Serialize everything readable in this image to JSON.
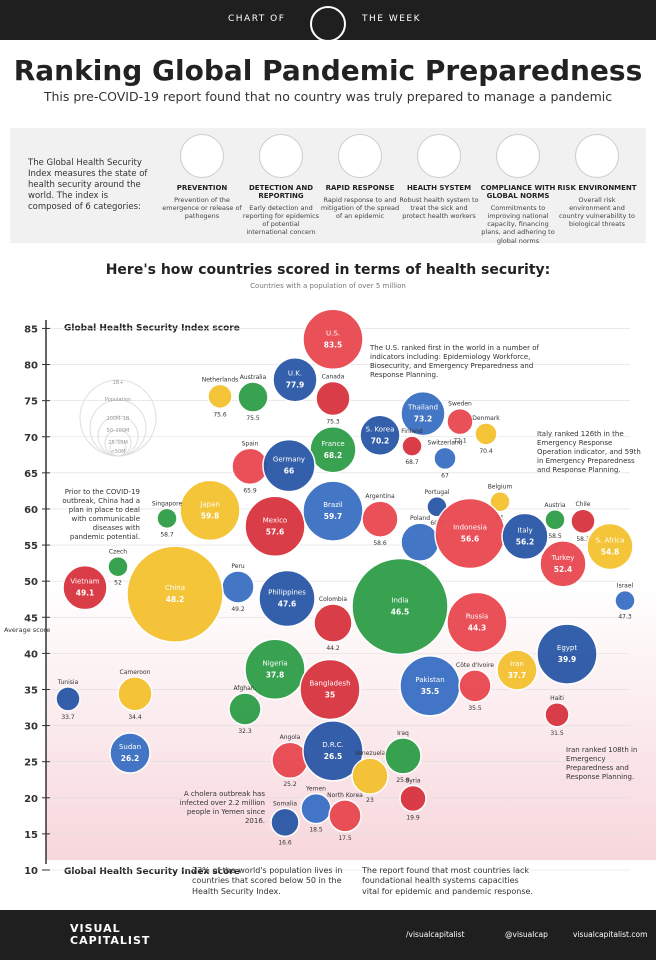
{
  "header": {
    "left": "CHART OF",
    "right": "THE WEEK",
    "title": "Ranking Global Pandemic Preparedness",
    "subtitle": "This pre-COVID-19 report found that no country was truly prepared to manage a pandemic"
  },
  "intro": "The Global Health Security Index measures the state of health security around the world. The index is composed of 6 categories:",
  "categories": [
    {
      "title": "PREVENTION",
      "desc": "Prevention of the emergence or release of pathogens"
    },
    {
      "title": "DETECTION AND REPORTING",
      "desc": "Early detection and reporting for epidemics of potential international concern"
    },
    {
      "title": "RAPID RESPONSE",
      "desc": "Rapid response to and mitigation of the spread of an epidemic"
    },
    {
      "title": "HEALTH SYSTEM",
      "desc": "Robust health system to treat the sick and protect health workers"
    },
    {
      "title": "COMPLIANCE WITH GLOBAL NORMS",
      "desc": "Commitments to improving national capacity, financing plans, and adhering to global norms"
    },
    {
      "title": "RISK ENVIRONMENT",
      "desc": "Overall risk environment and country vulnerability to biological threats"
    }
  ],
  "chart_data": {
    "type": "bubble",
    "title": "Here's how countries scored in terms of health security:",
    "subtitle": "Countries with a population of over 5 million",
    "y_label_top": "Global Health Security Index score",
    "y_label_bottom": "Global Health Security Index score",
    "average_label": "Average score",
    "ylim": [
      10,
      87
    ],
    "yticks": [
      10,
      15,
      20,
      25,
      30,
      35,
      40,
      45,
      50,
      55,
      60,
      65,
      70,
      75,
      80,
      85
    ],
    "population_legend": [
      "1B+",
      "Population",
      "100M–1B",
      "50–100M",
      "25–50M",
      "<50M"
    ],
    "points": [
      {
        "name": "U.S.",
        "value": 83.5
      },
      {
        "name": "U.K.",
        "value": 77.9
      },
      {
        "name": "Netherlands",
        "value": 75.6
      },
      {
        "name": "Australia",
        "value": 75.5
      },
      {
        "name": "Canada",
        "value": 75.3
      },
      {
        "name": "Thailand",
        "value": 73.2
      },
      {
        "name": "Sweden",
        "value": 72.1
      },
      {
        "name": "S. Korea",
        "value": 70.2
      },
      {
        "name": "Denmark",
        "value": 70.4
      },
      {
        "name": "France",
        "value": 68.2
      },
      {
        "name": "Finland",
        "value": 68.7
      },
      {
        "name": "Switzerland",
        "value": 67.0
      },
      {
        "name": "Spain",
        "value": 65.9
      },
      {
        "name": "Germany",
        "value": 66.0
      },
      {
        "name": "Japan",
        "value": 59.8
      },
      {
        "name": "Singapore",
        "value": 58.7
      },
      {
        "name": "Mexico",
        "value": 57.6
      },
      {
        "name": "Brazil",
        "value": 59.7
      },
      {
        "name": "Argentina",
        "value": 58.6
      },
      {
        "name": "Portugal",
        "value": 60.3
      },
      {
        "name": "Belgium",
        "value": 61.0
      },
      {
        "name": "Austria",
        "value": 58.5
      },
      {
        "name": "Chile",
        "value": 58.3
      },
      {
        "name": "Poland",
        "value": 55.4
      },
      {
        "name": "Indonesia",
        "value": 56.6
      },
      {
        "name": "Italy",
        "value": 56.2
      },
      {
        "name": "S. Africa",
        "value": 54.8
      },
      {
        "name": "Czech",
        "value": 52.0
      },
      {
        "name": "Vietnam",
        "value": 49.1
      },
      {
        "name": "Peru",
        "value": 49.2
      },
      {
        "name": "Turkey",
        "value": 52.4
      },
      {
        "name": "Philippines",
        "value": 47.6
      },
      {
        "name": "China",
        "value": 48.2
      },
      {
        "name": "India",
        "value": 46.5
      },
      {
        "name": "Colombia",
        "value": 44.2
      },
      {
        "name": "Israel",
        "value": 47.3
      },
      {
        "name": "Russia",
        "value": 44.3
      },
      {
        "name": "Egypt",
        "value": 39.9
      },
      {
        "name": "Iran",
        "value": 37.7
      },
      {
        "name": "Nigeria",
        "value": 37.8
      },
      {
        "name": "Bangladesh",
        "value": 35.0
      },
      {
        "name": "Pakistan",
        "value": 35.5
      },
      {
        "name": "Côte d'Ivoire",
        "value": 35.5
      },
      {
        "name": "Tunisia",
        "value": 33.7
      },
      {
        "name": "Cameroon",
        "value": 34.4
      },
      {
        "name": "Afghan.",
        "value": 32.3
      },
      {
        "name": "Haiti",
        "value": 31.5
      },
      {
        "name": "Sudan",
        "value": 26.2
      },
      {
        "name": "Angola",
        "value": 25.2
      },
      {
        "name": "D.R.C.",
        "value": 26.5
      },
      {
        "name": "Venezuela",
        "value": 23.0
      },
      {
        "name": "Iraq",
        "value": 25.8
      },
      {
        "name": "Syria",
        "value": 19.9
      },
      {
        "name": "Yemen",
        "value": 18.5
      },
      {
        "name": "North Korea",
        "value": 17.5
      },
      {
        "name": "Somalia",
        "value": 16.6
      }
    ],
    "annotations": [
      "The U.S. ranked first in the world in a number of indicators including: Epidemiology Workforce, Biosecurity, and Emergency Preparedness and Response Planning.",
      "Italy ranked 126th in the Emergency Response Operation indicator, and 59th in Emergency Preparedness and Response Planning.",
      "Prior to the COVID-19 outbreak, China had a plan in place to deal with communicable diseases with pandemic potential.",
      "Iran ranked 108th in Emergency Preparedness and Response Planning.",
      "A cholera outbreak has infected over 2.2 million people in Yemen since 2016.",
      "73% of the world's population lives in countries that scored below 50 in the Health Security Index.",
      "The report found that most countries lack foundational health systems capacities vital for epidemic and pandemic response."
    ]
  },
  "footer": {
    "brand": "VISUAL CAPITALIST",
    "facebook": "/visualcapitalist",
    "twitter": "@visualcap",
    "site": "visualcapitalist.com"
  }
}
